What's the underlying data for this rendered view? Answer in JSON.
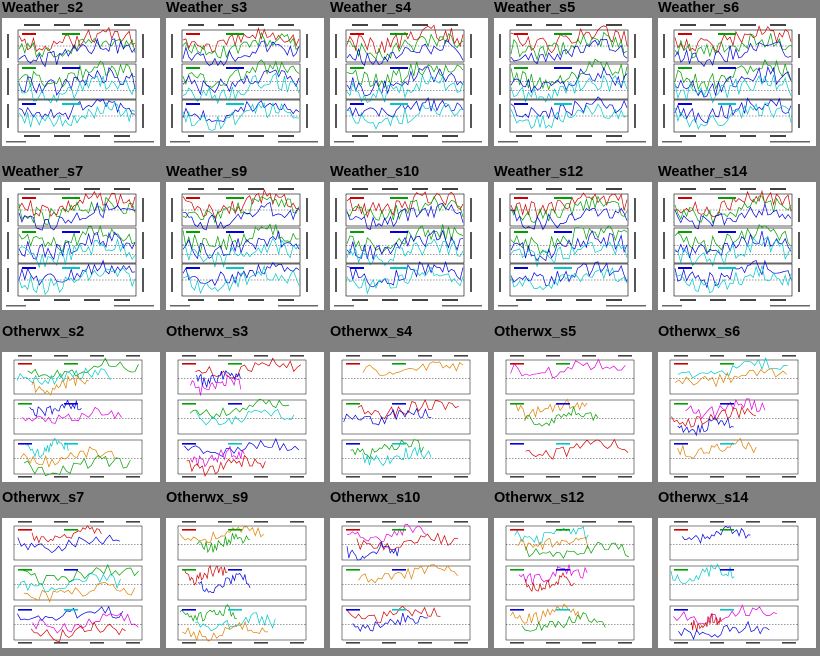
{
  "rows": [
    {
      "kind": "weather",
      "items": [
        "Weather_s2",
        "Weather_s3",
        "Weather_s4",
        "Weather_s5",
        "Weather_s6"
      ]
    },
    {
      "kind": "weather",
      "items": [
        "Weather_s7",
        "Weather_s9",
        "Weather_s10",
        "Weather_s12",
        "Weather_s14"
      ]
    },
    {
      "kind": "otherwx",
      "items": [
        "Otherwx_s2",
        "Otherwx_s3",
        "Otherwx_s4",
        "Otherwx_s5",
        "Otherwx_s6"
      ]
    },
    {
      "kind": "otherwx",
      "items": [
        "Otherwx_s7",
        "Otherwx_s9",
        "Otherwx_s10",
        "Otherwx_s12",
        "Otherwx_s14"
      ]
    }
  ],
  "colors": {
    "background": "#808080",
    "series": [
      "#d00000",
      "#00a000",
      "#0000e0",
      "#00c8c8",
      "#e000e0",
      "#e08000"
    ]
  }
}
